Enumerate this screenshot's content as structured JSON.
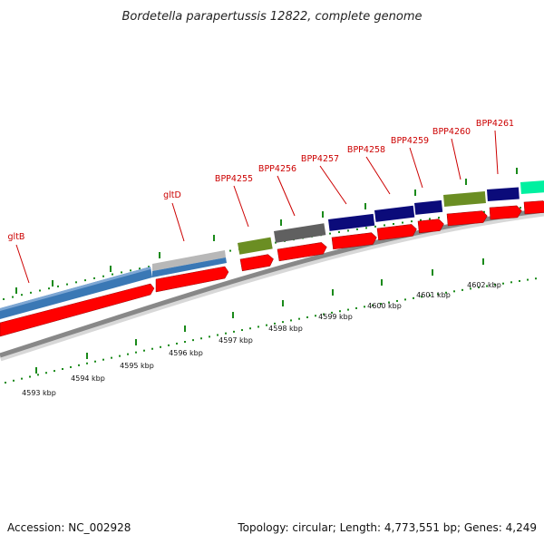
{
  "title": "Bordetella parapertussis 12822, complete genome",
  "footer": {
    "accession": "Accession: NC_002928",
    "topology": "Topology: circular; Length: 4,773,551 bp; Genes: 4,249"
  },
  "scale": {
    "labels": [
      "4593 kbp",
      "4594 kbp",
      "4595 kbp",
      "4596 kbp",
      "4597 kbp",
      "4598 kbp",
      "4599 kbp",
      "4600 kbp",
      "4601 kbp",
      "4602 kbp"
    ]
  },
  "genes": [
    {
      "name": "gltB"
    },
    {
      "name": "gltD"
    },
    {
      "name": "BPP4255"
    },
    {
      "name": "BPP4256"
    },
    {
      "name": "BPP4257"
    },
    {
      "name": "BPP4258"
    },
    {
      "name": "BPP4259"
    },
    {
      "name": "BPP4260"
    },
    {
      "name": "BPP4261"
    }
  ],
  "colors": {
    "cds_red": "#ff0000",
    "blue": "#3a78b5",
    "light_gray": "#b8b8b8",
    "olive": "#6b8e23",
    "dark_gray": "#606060",
    "navy": "#0b0b7a",
    "teal": "#00f0a0",
    "tick_green": "#1a8a1a",
    "label_red": "#cc0000",
    "backbone_gray": "#888888"
  }
}
